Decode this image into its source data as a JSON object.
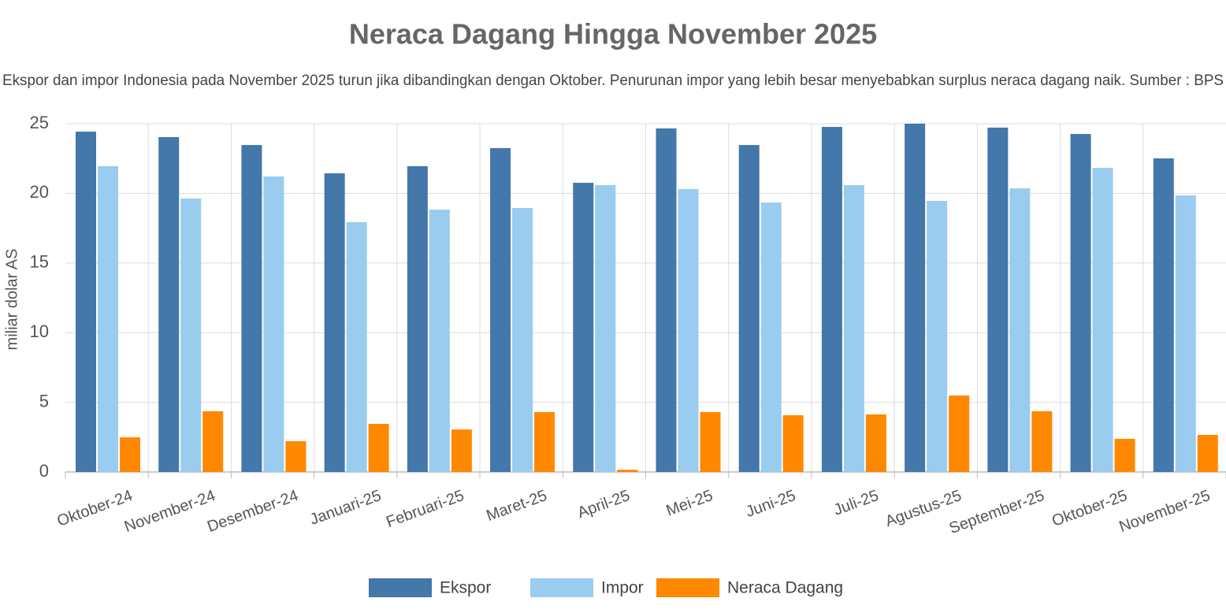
{
  "chart_data": {
    "type": "bar",
    "title": "Neraca Dagang Hingga November 2025",
    "subtitle": "Ekspor dan impor Indonesia pada November 2025 turun jika dibandingkan dengan Oktober. Penurunan impor yang lebih besar menyebabkan surplus neraca dagang naik. Sumber : BPS",
    "y_label": "miliar dolar AS",
    "categories": [
      "Oktober-24",
      "November-24",
      "Desember-24",
      "Januari-25",
      "Februari-25",
      "Maret-25",
      "April-25",
      "Mei-25",
      "Juni-25",
      "Juli-25",
      "Agustus-25",
      "September-25",
      "Oktober-25",
      "November-25"
    ],
    "series": [
      {
        "name": "Ekspor",
        "color": "#4477aa",
        "values": [
          24.43,
          24.04,
          23.47,
          21.44,
          21.95,
          23.25,
          20.76,
          24.66,
          23.47,
          24.77,
          25.0,
          24.72,
          24.26,
          22.51
        ]
      },
      {
        "name": "Impor",
        "color": "#99ccee",
        "values": [
          21.95,
          19.63,
          21.21,
          17.93,
          18.83,
          18.95,
          20.59,
          20.31,
          19.34,
          20.59,
          19.46,
          20.36,
          21.83,
          19.85
        ]
      },
      {
        "name": "Neraca Dagang",
        "color": "#ff8800",
        "values": [
          2.49,
          4.36,
          2.21,
          3.45,
          3.05,
          4.3,
          0.16,
          4.3,
          4.07,
          4.13,
          5.49,
          4.36,
          2.38,
          2.66
        ]
      }
    ],
    "ylim": [
      0,
      25
    ],
    "yticks": [
      0,
      5,
      10,
      15,
      20,
      25
    ],
    "grid": true,
    "legend": "bottom"
  }
}
